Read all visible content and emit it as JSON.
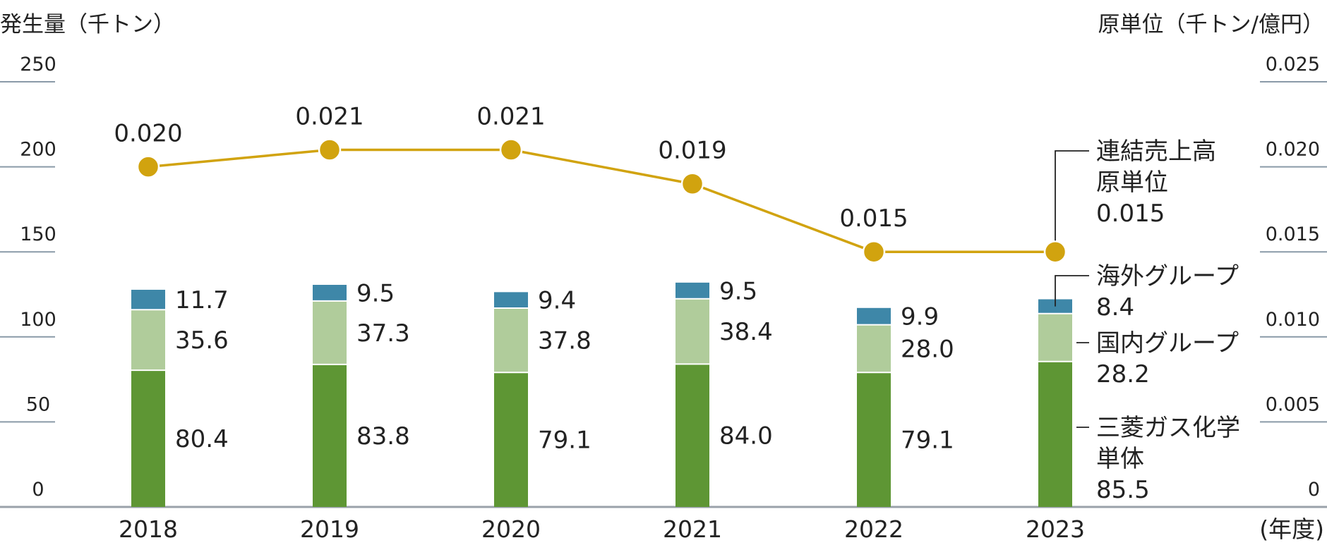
{
  "chart_data": {
    "type": "bar",
    "left_axis_title": "発生量（千トン）",
    "right_axis_title": "原単位（千トン/億円）",
    "x_unit_label": "(年度)",
    "left_ticks": [
      "0",
      "50",
      "100",
      "150",
      "200",
      "250"
    ],
    "right_ticks": [
      "0",
      "0.005",
      "0.010",
      "0.015",
      "0.020",
      "0.025"
    ],
    "ylim_left": [
      0,
      250
    ],
    "ylim_right": [
      0,
      0.025
    ],
    "categories": [
      "2018",
      "2019",
      "2020",
      "2021",
      "2022",
      "2023"
    ],
    "series": [
      {
        "name": "三菱ガス化学単体",
        "values": [
          80.4,
          83.8,
          79.1,
          84.0,
          79.1,
          85.5
        ],
        "color": "#5e9634"
      },
      {
        "name": "国内グループ",
        "values": [
          35.6,
          37.3,
          37.8,
          38.4,
          28.0,
          28.2
        ],
        "color": "#b0cc9b"
      },
      {
        "name": "海外グループ",
        "values": [
          11.7,
          9.5,
          9.4,
          9.5,
          9.9,
          8.4
        ],
        "color": "#3e87a8"
      }
    ],
    "line_series": {
      "name": "連結売上高原単位",
      "values": [
        0.02,
        0.021,
        0.021,
        0.019,
        0.015,
        0.015
      ],
      "labels": [
        "0.020",
        "0.021",
        "0.021",
        "0.019",
        "0.015",
        "0.015"
      ],
      "color": "#d1a30f"
    },
    "legend": {
      "line": [
        "連結売上高",
        "原単位",
        "0.015"
      ],
      "overseas": [
        "海外グループ",
        "8.4"
      ],
      "domestic": [
        "国内グループ",
        "28.2"
      ],
      "parent": [
        "三菱ガス化学",
        "単体",
        "85.5"
      ]
    }
  }
}
